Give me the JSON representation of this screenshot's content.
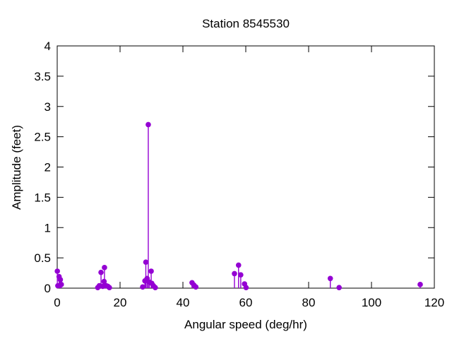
{
  "figure": {
    "background_color": "#ffffff",
    "text_color": "#000000",
    "border_color": "#000000"
  },
  "chart_data": {
    "type": "stem",
    "title": "Station 8545530",
    "xlabel": "Angular speed (deg/hr)",
    "ylabel": "Amplitude (feet)",
    "xlim": [
      0,
      120
    ],
    "ylim": [
      0,
      4
    ],
    "xticks": {
      "values": [
        0,
        20,
        40,
        60,
        80,
        100,
        120
      ],
      "labels": [
        "0",
        "20",
        "40",
        "60",
        "80",
        "100",
        "120"
      ]
    },
    "yticks": {
      "values": [
        0,
        0.5,
        1,
        1.5,
        2,
        2.5,
        3,
        3.5,
        4
      ],
      "labels": [
        "0",
        "0.5",
        "1",
        "1.5",
        "2",
        "2.5",
        "3",
        "3.5",
        "4"
      ]
    },
    "grid": false,
    "legend_position": "none",
    "marker": "filled-circle",
    "series": [
      {
        "name": "amplitude-vs-angular-speed",
        "color": "#9400d3",
        "points": [
          [
            0.04,
            0.28
          ],
          [
            0.2,
            0.04
          ],
          [
            0.6,
            0.19
          ],
          [
            1.0,
            0.14
          ],
          [
            1.3,
            0.06
          ],
          [
            12.9,
            0.01
          ],
          [
            13.4,
            0.04
          ],
          [
            13.94,
            0.26
          ],
          [
            14.5,
            0.03
          ],
          [
            14.92,
            0.11
          ],
          [
            15.04,
            0.34
          ],
          [
            15.6,
            0.04
          ],
          [
            16.1,
            0.03
          ],
          [
            16.6,
            0.01
          ],
          [
            27.2,
            0.02
          ],
          [
            27.9,
            0.12
          ],
          [
            28.2,
            0.43
          ],
          [
            28.6,
            0.16
          ],
          [
            28.98,
            2.7
          ],
          [
            29.3,
            0.1
          ],
          [
            29.9,
            0.28
          ],
          [
            30.1,
            0.08
          ],
          [
            30.6,
            0.04
          ],
          [
            31.2,
            0.01
          ],
          [
            42.9,
            0.09
          ],
          [
            43.5,
            0.05
          ],
          [
            44.1,
            0.02
          ],
          [
            56.4,
            0.24
          ],
          [
            57.7,
            0.38
          ],
          [
            58.4,
            0.22
          ],
          [
            59.6,
            0.07
          ],
          [
            60.1,
            0.01
          ],
          [
            86.9,
            0.16
          ],
          [
            89.7,
            0.01
          ],
          [
            115.5,
            0.06
          ]
        ]
      }
    ]
  }
}
